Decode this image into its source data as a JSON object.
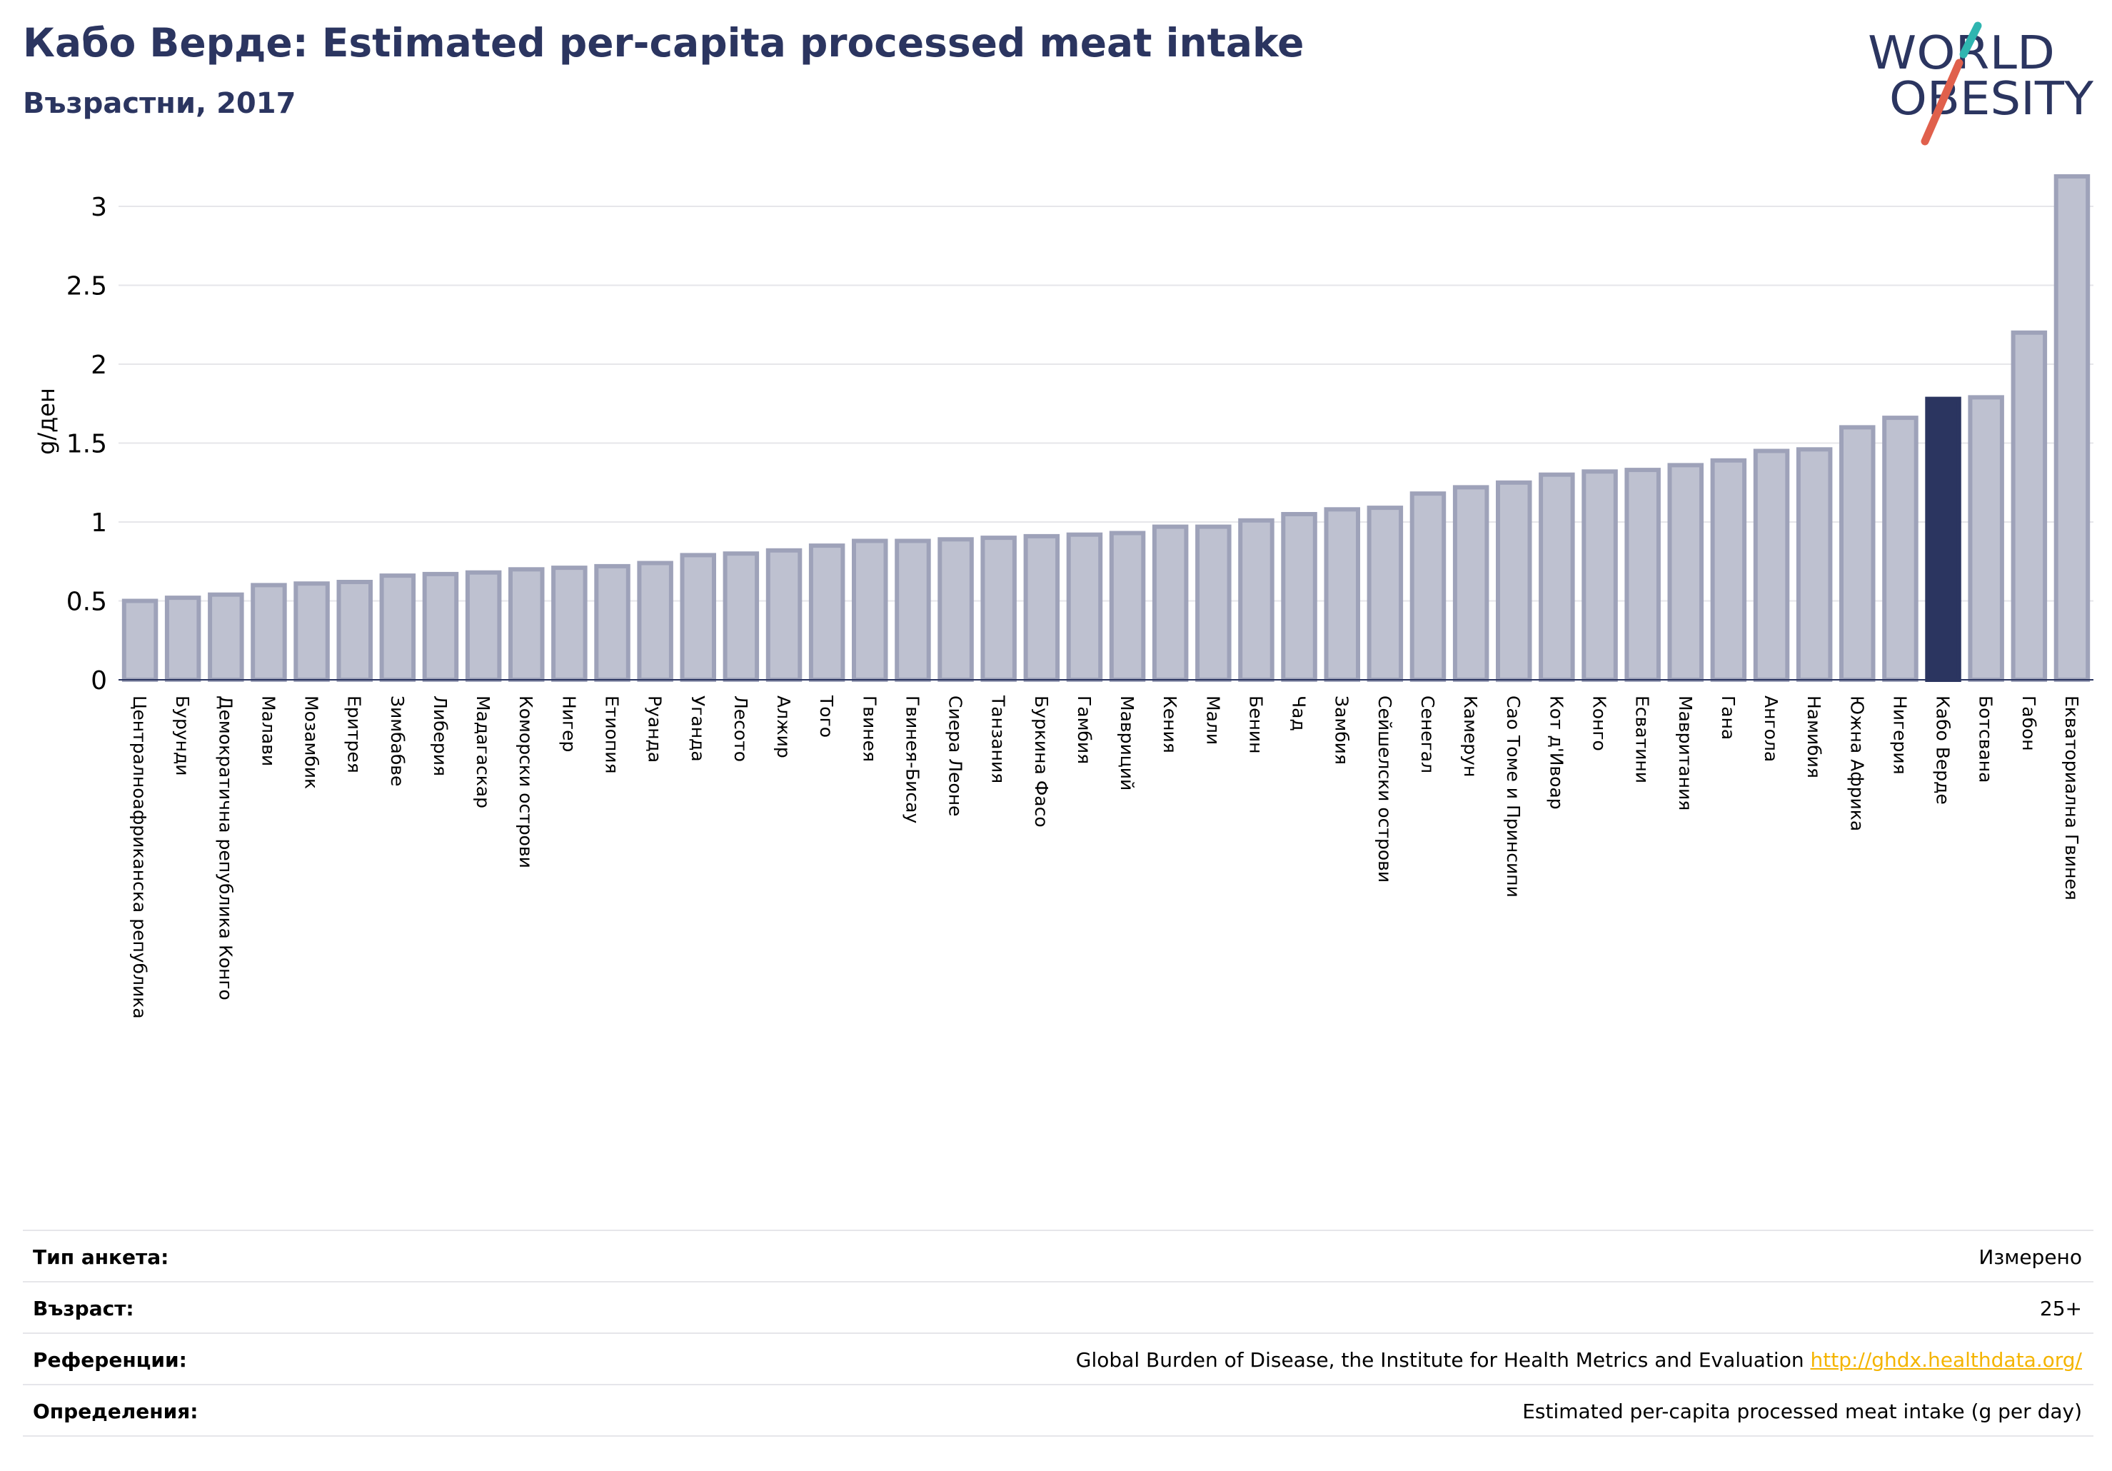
{
  "header": {
    "title": "Кабо Верде: Estimated per-capita processed meat intake",
    "subtitle": "Възрастни, 2017"
  },
  "logo": {
    "line1": "WORLD",
    "line2": "OBESITY",
    "accent_teal": "#2fb5b0",
    "accent_red": "#e0604c",
    "text_color": "#2b3560"
  },
  "colors": {
    "bar": "#bec1d0",
    "bar_edge": "#9ea2b9",
    "highlight": "#2b3560",
    "grid": "#e6e6ea",
    "axis": "#2b3560"
  },
  "chart_data": {
    "type": "bar",
    "ylabel": "g/ден",
    "ylim": [
      0,
      3.2
    ],
    "yticks": [
      0,
      0.5,
      1,
      1.5,
      2,
      2.5,
      3
    ],
    "ytick_labels": [
      "0",
      "0.5",
      "1",
      "1.5",
      "2",
      "2.5",
      "3"
    ],
    "highlight": "Кабо Верде",
    "categories": [
      "Централноафриканска република",
      "Бурунди",
      "Демократична република Конго",
      "Малави",
      "Мозамбик",
      "Еритрея",
      "Зимбабве",
      "Либерия",
      "Мадагаскар",
      "Коморски острови",
      "Нигер",
      "Етиопия",
      "Руанда",
      "Уганда",
      "Лесото",
      "Алжир",
      "Того",
      "Гвинея",
      "Гвинея-Бисау",
      "Сиера Леоне",
      "Танзания",
      "Буркина Фасо",
      "Гамбия",
      "Мавриций",
      "Кения",
      "Мали",
      "Бенин",
      "Чад",
      "Замбия",
      "Сейшелски острови",
      "Сенегал",
      "Камерун",
      "Сао Томе и Принсипи",
      "Кот д'Ивоар",
      "Конго",
      "Есватини",
      "Мавритания",
      "Гана",
      "Ангола",
      "Намибия",
      "Южна Африка",
      "Нигерия",
      "Кабо Верде",
      "Ботсвана",
      "Габон",
      "Екваториална Гвинея"
    ],
    "values": [
      0.5,
      0.52,
      0.54,
      0.6,
      0.61,
      0.62,
      0.66,
      0.67,
      0.68,
      0.7,
      0.71,
      0.72,
      0.74,
      0.79,
      0.8,
      0.82,
      0.85,
      0.88,
      0.88,
      0.89,
      0.9,
      0.91,
      0.92,
      0.93,
      0.97,
      0.97,
      1.01,
      1.05,
      1.08,
      1.09,
      1.18,
      1.22,
      1.25,
      1.3,
      1.32,
      1.33,
      1.36,
      1.39,
      1.45,
      1.46,
      1.6,
      1.66,
      1.78,
      1.79,
      2.2,
      3.19
    ]
  },
  "info": {
    "rows": [
      {
        "label": "Тип анкета:",
        "value": "Измерено"
      },
      {
        "label": "Възраст:",
        "value": "25+"
      },
      {
        "label": "Референции:",
        "value": "Global Burden of Disease, the Institute for Health Metrics and Evaluation",
        "link": "http://ghdx.healthdata.org/"
      },
      {
        "label": "Определения:",
        "value": "Estimated per-capita processed meat intake (g per day)"
      }
    ]
  }
}
